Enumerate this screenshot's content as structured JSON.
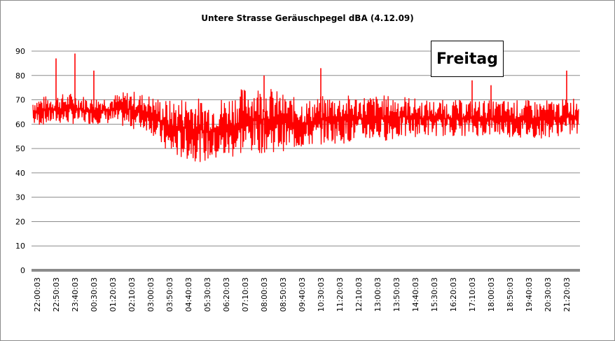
{
  "chart_data": {
    "type": "line",
    "title": "Untere Strasse Geräuschpegel dBA (4.12.09)",
    "annotation": "Freitag",
    "xlabel": "",
    "ylabel": "",
    "ylim": [
      0,
      90
    ],
    "y_ticks": [
      0,
      10,
      20,
      30,
      40,
      50,
      60,
      70,
      80,
      90
    ],
    "x_tick_labels": [
      "22:00:03",
      "22:50:03",
      "23:40:03",
      "00:30:03",
      "01:20:03",
      "02:10:03",
      "03:00:03",
      "03:50:03",
      "04:40:03",
      "05:30:03",
      "06:20:03",
      "07:10:03",
      "08:00:03",
      "08:50:03",
      "09:40:03",
      "10:30:03",
      "11:20:03",
      "12:10:03",
      "13:00:03",
      "13:50:03",
      "14:40:03",
      "15:30:03",
      "16:20:03",
      "17:10:03",
      "18:00:03",
      "18:50:03",
      "19:40:03",
      "20:30:03",
      "21:20:03"
    ],
    "grid": true,
    "series": [
      {
        "color": "#ff0000",
        "x": [
          "22:00:03",
          "22:50:03",
          "23:40:03",
          "00:30:03",
          "01:20:03",
          "02:10:03",
          "03:00:03",
          "03:50:03",
          "04:40:03",
          "05:30:03",
          "06:20:03",
          "07:10:03",
          "08:00:03",
          "08:50:03",
          "09:40:03",
          "10:30:03",
          "11:20:03",
          "12:10:03",
          "13:00:03",
          "13:50:03",
          "14:40:03",
          "15:30:03",
          "16:20:03",
          "17:10:03",
          "18:00:03",
          "18:50:03",
          "19:40:03",
          "20:30:03",
          "21:20:03"
        ],
        "low": [
          59,
          60,
          60,
          60,
          60,
          58,
          57,
          46,
          45,
          44,
          45,
          48,
          48,
          49,
          50,
          52,
          52,
          53,
          53,
          54,
          55,
          55,
          55,
          55,
          55,
          54,
          54,
          55,
          55
        ],
        "high": [
          71,
          72,
          73,
          71,
          72,
          74,
          72,
          70,
          72,
          70,
          72,
          76,
          76,
          72,
          70,
          72,
          72,
          72,
          72,
          72,
          70,
          70,
          70,
          70,
          70,
          70,
          70,
          70,
          72
        ],
        "peaks": [
          {
            "x": "22:50:03",
            "y": 87
          },
          {
            "x": "23:40:03",
            "y": 89
          },
          {
            "x": "00:30:03",
            "y": 82
          },
          {
            "x": "08:00:03",
            "y": 80
          },
          {
            "x": "10:30:03",
            "y": 83
          },
          {
            "x": "17:10:03",
            "y": 78
          },
          {
            "x": "18:00:03",
            "y": 76
          },
          {
            "x": "21:20:03",
            "y": 82
          }
        ]
      }
    ]
  }
}
